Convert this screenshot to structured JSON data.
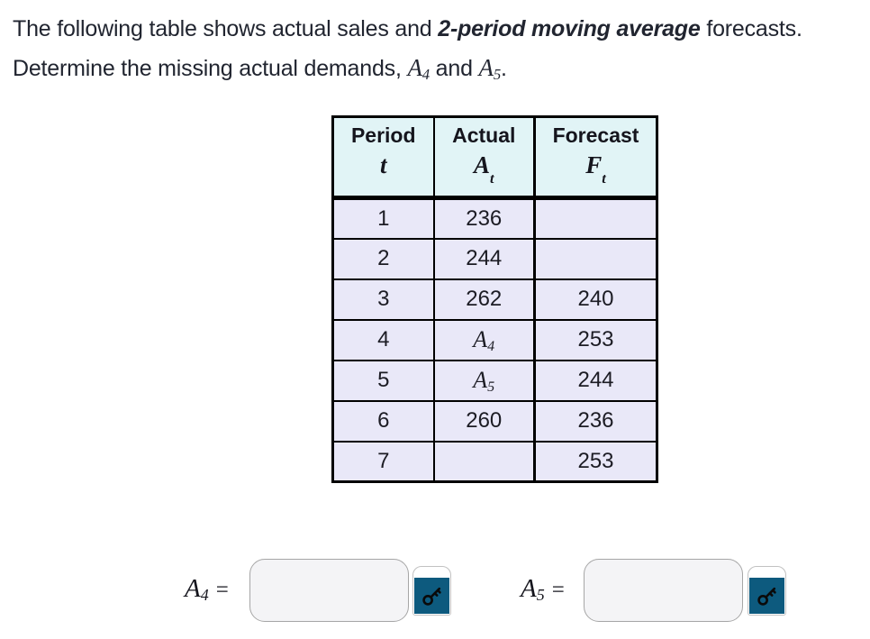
{
  "problem": {
    "line1_pre": "The following table shows actual sales and ",
    "line1_bold": "2-period moving average",
    "line1_post": " forecasts.",
    "line2_pre": "Determine the missing actual demands, ",
    "var1": {
      "letter": "A",
      "sub": "4"
    },
    "line2_mid": " and ",
    "var2": {
      "letter": "A",
      "sub": "5"
    },
    "line2_end": "."
  },
  "table": {
    "headers": [
      {
        "label": "Period",
        "letter": "t",
        "sub": ""
      },
      {
        "label": "Actual",
        "letter": "A",
        "sub": "t"
      },
      {
        "label": "Forecast",
        "letter": "F",
        "sub": "t"
      }
    ],
    "rows": [
      {
        "period": "1",
        "actual": "236",
        "forecast": ""
      },
      {
        "period": "2",
        "actual": "244",
        "forecast": ""
      },
      {
        "period": "3",
        "actual": "262",
        "forecast": "240"
      },
      {
        "period": "4",
        "actual_var": "A",
        "actual_sub": "4",
        "forecast": "253"
      },
      {
        "period": "5",
        "actual_var": "A",
        "actual_sub": "5",
        "forecast": "244"
      },
      {
        "period": "6",
        "actual": "260",
        "forecast": "236"
      },
      {
        "period": "7",
        "actual": "",
        "forecast": "253"
      }
    ]
  },
  "answers": [
    {
      "letter": "A",
      "sub": "4",
      "eq": "=",
      "value": "",
      "icon": "key-icon"
    },
    {
      "letter": "A",
      "sub": "5",
      "eq": "=",
      "value": "",
      "icon": "key-icon"
    }
  ],
  "colors": {
    "header_bg": "#e1f4f6",
    "row_bg": "#e9e8f8",
    "border": "#000000",
    "key_button": "#0d5a7e",
    "input_bg": "#f4f4f6",
    "input_border": "#a6a6a6",
    "text": "#212530"
  }
}
